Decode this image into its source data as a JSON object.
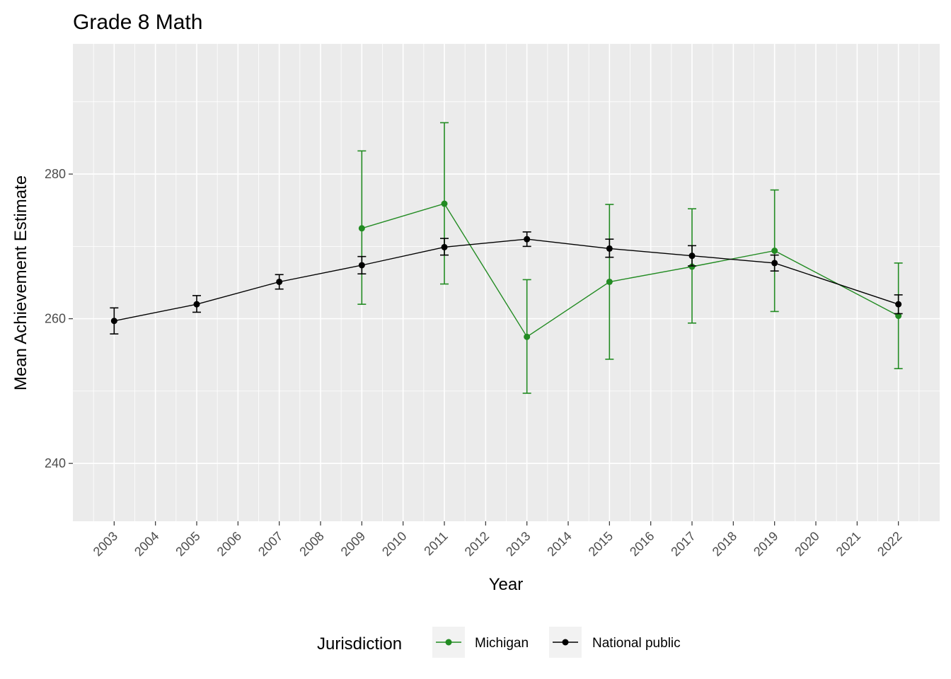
{
  "chart_data": {
    "type": "line",
    "title": "Grade 8 Math",
    "xlabel": "Year",
    "ylabel": "Mean Achievement Estimate",
    "x_ticks": [
      "2003",
      "2004",
      "2005",
      "2006",
      "2007",
      "2008",
      "2009",
      "2010",
      "2011",
      "2012",
      "2013",
      "2014",
      "2015",
      "2016",
      "2017",
      "2018",
      "2019",
      "2020",
      "2021",
      "2022"
    ],
    "y_ticks": [
      240,
      260,
      280
    ],
    "xlim": [
      2002,
      2023
    ],
    "ylim": [
      232,
      298
    ],
    "grid": true,
    "legend": {
      "title": "Jurisdiction",
      "position": "bottom"
    },
    "series": [
      {
        "name": "Michigan",
        "color": "#228B22",
        "points": [
          {
            "x": 2009,
            "y": 272.5,
            "lo": 262.0,
            "hi": 283.2
          },
          {
            "x": 2011,
            "y": 275.9,
            "lo": 264.8,
            "hi": 287.1
          },
          {
            "x": 2013,
            "y": 257.5,
            "lo": 249.7,
            "hi": 265.4
          },
          {
            "x": 2015,
            "y": 265.1,
            "lo": 254.4,
            "hi": 275.8
          },
          {
            "x": 2017,
            "y": 267.2,
            "lo": 259.4,
            "hi": 275.2
          },
          {
            "x": 2019,
            "y": 269.4,
            "lo": 261.0,
            "hi": 277.8
          },
          {
            "x": 2022,
            "y": 260.4,
            "lo": 253.1,
            "hi": 267.7
          }
        ]
      },
      {
        "name": "National public",
        "color": "#000000",
        "points": [
          {
            "x": 2003,
            "y": 259.7,
            "lo": 257.9,
            "hi": 261.5
          },
          {
            "x": 2005,
            "y": 262.0,
            "lo": 260.9,
            "hi": 263.2
          },
          {
            "x": 2007,
            "y": 265.1,
            "lo": 264.1,
            "hi": 266.1
          },
          {
            "x": 2009,
            "y": 267.4,
            "lo": 266.2,
            "hi": 268.6
          },
          {
            "x": 2011,
            "y": 269.9,
            "lo": 268.8,
            "hi": 271.1
          },
          {
            "x": 2013,
            "y": 271.0,
            "lo": 270.0,
            "hi": 272.0
          },
          {
            "x": 2015,
            "y": 269.7,
            "lo": 268.5,
            "hi": 271.0
          },
          {
            "x": 2017,
            "y": 268.7,
            "lo": 267.3,
            "hi": 270.1
          },
          {
            "x": 2019,
            "y": 267.7,
            "lo": 266.6,
            "hi": 268.8
          },
          {
            "x": 2022,
            "y": 262.0,
            "lo": 260.7,
            "hi": 263.3
          }
        ]
      }
    ]
  }
}
